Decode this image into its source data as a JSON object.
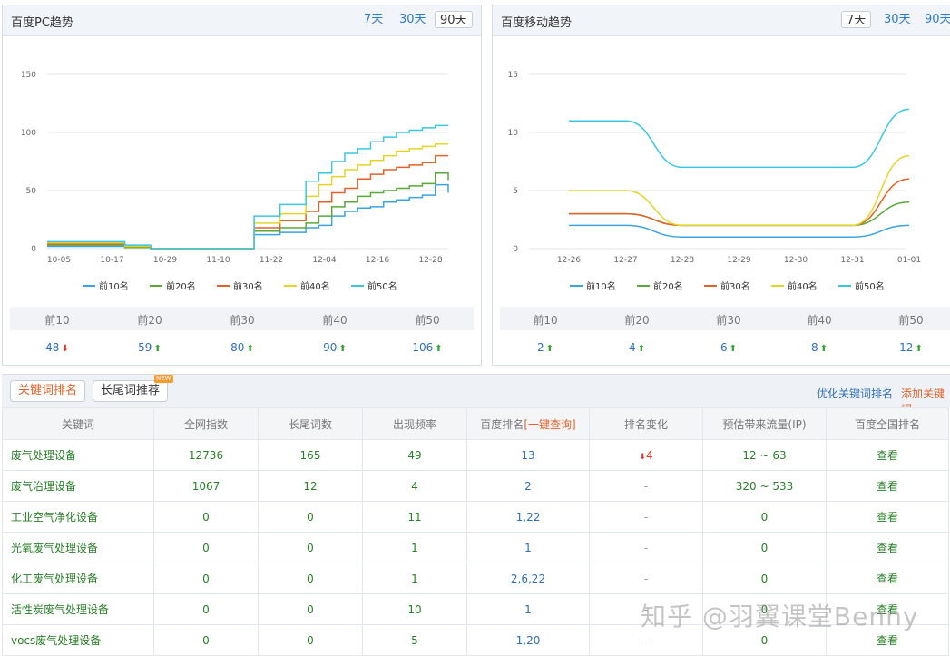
{
  "pc": {
    "title": "百度PC趋势",
    "ranges": [
      "7天",
      "30天",
      "90天"
    ],
    "active_range": 2,
    "summary": [
      {
        "label": "前10",
        "value": "48",
        "dir": "down"
      },
      {
        "label": "前20",
        "value": "59",
        "dir": "up"
      },
      {
        "label": "前30",
        "value": "80",
        "dir": "up"
      },
      {
        "label": "前40",
        "value": "90",
        "dir": "up"
      },
      {
        "label": "前50",
        "value": "106",
        "dir": "up"
      }
    ]
  },
  "mobile": {
    "title": "百度移动趋势",
    "ranges": [
      "7天",
      "30天",
      "90天"
    ],
    "active_range": 0,
    "summary": [
      {
        "label": "前10",
        "value": "2",
        "dir": "up"
      },
      {
        "label": "前20",
        "value": "4",
        "dir": "up"
      },
      {
        "label": "前30",
        "value": "6",
        "dir": "up"
      },
      {
        "label": "前40",
        "value": "8",
        "dir": "up"
      },
      {
        "label": "前50",
        "value": "12",
        "dir": "up"
      }
    ]
  },
  "chart_data": [
    {
      "type": "line",
      "title": "百度PC趋势",
      "x_ticks": [
        "10-05",
        "10-17",
        "10-29",
        "11-10",
        "11-22",
        "12-04",
        "12-16",
        "12-28"
      ],
      "ylim": [
        0,
        150
      ],
      "y_ticks": [
        0,
        50,
        100,
        150
      ],
      "grid": true,
      "legend": "bottom",
      "x": [
        0,
        6,
        12,
        18,
        24,
        30,
        36,
        42,
        48,
        54,
        60,
        63,
        66,
        69,
        72,
        75,
        78,
        81,
        84,
        87,
        90,
        93
      ],
      "series": [
        {
          "name": "前10名",
          "color": "#3ba3dd",
          "values": [
            2,
            2,
            2,
            1,
            0,
            0,
            0,
            0,
            12,
            14,
            18,
            20,
            28,
            32,
            35,
            36,
            40,
            42,
            44,
            46,
            55,
            48
          ]
        },
        {
          "name": "前20名",
          "color": "#5aa83a",
          "values": [
            3,
            3,
            3,
            1,
            0,
            0,
            0,
            0,
            15,
            18,
            22,
            28,
            36,
            40,
            45,
            48,
            50,
            52,
            54,
            56,
            65,
            59
          ]
        },
        {
          "name": "前30名",
          "color": "#e0622a",
          "values": [
            4,
            4,
            4,
            2,
            0,
            0,
            0,
            0,
            18,
            24,
            32,
            40,
            48,
            52,
            60,
            64,
            68,
            70,
            72,
            74,
            80,
            80
          ]
        },
        {
          "name": "前40名",
          "color": "#e3d42a",
          "values": [
            5,
            5,
            5,
            2,
            0,
            0,
            0,
            0,
            22,
            30,
            45,
            55,
            62,
            68,
            72,
            76,
            80,
            84,
            86,
            88,
            90,
            90
          ]
        },
        {
          "name": "前50名",
          "color": "#3cc5df",
          "values": [
            6,
            6,
            6,
            3,
            0,
            0,
            0,
            0,
            28,
            38,
            58,
            65,
            75,
            82,
            86,
            92,
            96,
            100,
            102,
            104,
            106,
            106
          ]
        }
      ]
    },
    {
      "type": "line",
      "title": "百度移动趋势",
      "x_ticks": [
        "12-26",
        "12-27",
        "12-28",
        "12-29",
        "12-30",
        "12-31",
        "01-01"
      ],
      "ylim": [
        0,
        15
      ],
      "y_ticks": [
        0,
        5,
        10,
        15
      ],
      "grid": true,
      "legend": "bottom",
      "series": [
        {
          "name": "前10名",
          "color": "#3ba3dd",
          "values": [
            2,
            2,
            1,
            1,
            1,
            1,
            2
          ]
        },
        {
          "name": "前20名",
          "color": "#5aa83a",
          "values": [
            3,
            3,
            2,
            2,
            2,
            2,
            4
          ]
        },
        {
          "name": "前30名",
          "color": "#e0622a",
          "values": [
            3,
            3,
            2,
            2,
            2,
            2,
            6
          ]
        },
        {
          "name": "前40名",
          "color": "#e3d42a",
          "values": [
            5,
            5,
            2,
            2,
            2,
            2,
            8
          ]
        },
        {
          "name": "前50名",
          "color": "#3cc5df",
          "values": [
            11,
            11,
            7,
            7,
            7,
            7,
            12
          ]
        }
      ]
    }
  ],
  "keywords": {
    "tabs": [
      "关键词排名",
      "长尾词推荐"
    ],
    "new_badge": "NEW",
    "optimize_link": "优化关键词排名",
    "add_link": "添加关键词",
    "columns": [
      "关键词",
      "全网指数",
      "长尾词数",
      "出现频率",
      "百度排名",
      "[一键查询]",
      "排名变化",
      "预估带来流量(IP)",
      "百度全国排名"
    ],
    "rows": [
      {
        "name": "废气处理设备",
        "index": "12736",
        "longtail": "165",
        "freq": "49",
        "rank": "13",
        "change": "4",
        "change_dir": "down",
        "traffic": "12 ~ 63",
        "action": "查看"
      },
      {
        "name": "废气治理设备",
        "index": "1067",
        "longtail": "12",
        "freq": "4",
        "rank": "2",
        "change": "-",
        "change_dir": "",
        "traffic": "320 ~ 533",
        "action": "查看"
      },
      {
        "name": "工业空气净化设备",
        "index": "0",
        "longtail": "0",
        "freq": "11",
        "rank": "1,22",
        "change": "-",
        "change_dir": "",
        "traffic": "0",
        "action": "查看"
      },
      {
        "name": "光氧废气处理设备",
        "index": "0",
        "longtail": "0",
        "freq": "1",
        "rank": "1",
        "change": "-",
        "change_dir": "",
        "traffic": "0",
        "action": "查看"
      },
      {
        "name": "化工废气处理设备",
        "index": "0",
        "longtail": "0",
        "freq": "1",
        "rank": "2,6,22",
        "change": "-",
        "change_dir": "",
        "traffic": "0",
        "action": "查看"
      },
      {
        "name": "活性炭废气处理设备",
        "index": "0",
        "longtail": "0",
        "freq": "10",
        "rank": "1",
        "change": "-",
        "change_dir": "",
        "traffic": "0",
        "action": "查看"
      },
      {
        "name": "vocs废气处理设备",
        "index": "0",
        "longtail": "0",
        "freq": "5",
        "rank": "1,20",
        "change": "-",
        "change_dir": "",
        "traffic": "0",
        "action": "查看"
      }
    ]
  },
  "watermark": "知乎 @羽翼课堂Benny",
  "icons": {
    "up": "arrow-up-icon",
    "down": "arrow-down-icon"
  }
}
